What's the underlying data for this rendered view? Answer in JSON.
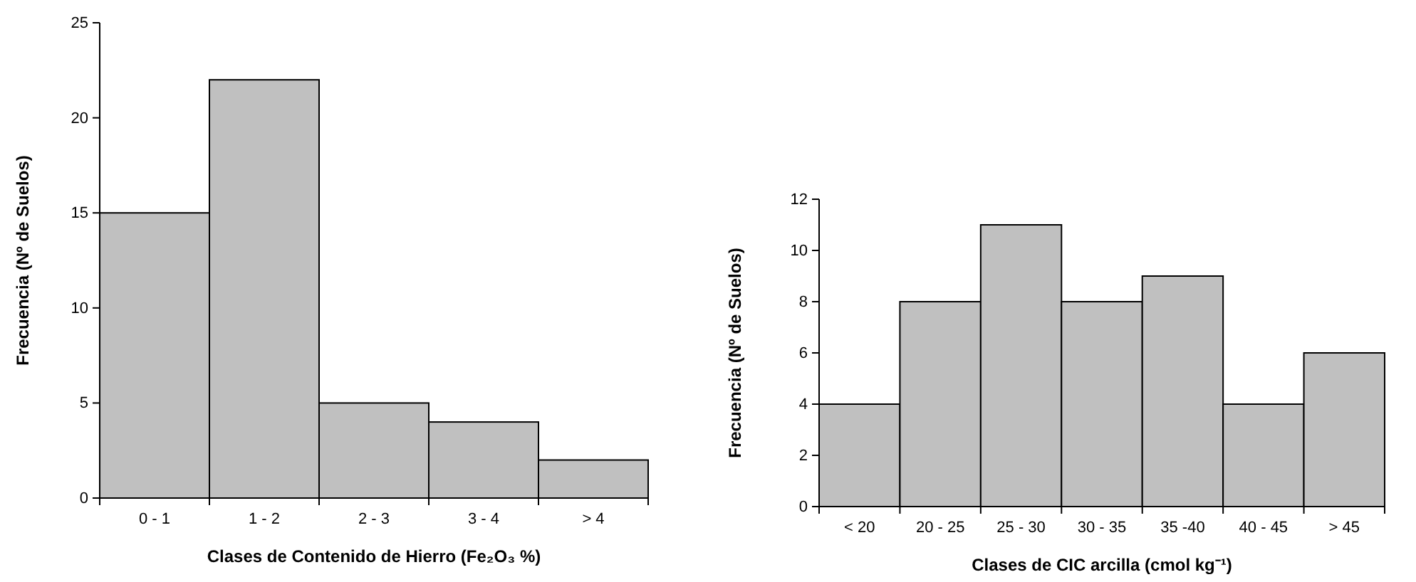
{
  "chart_data": [
    {
      "type": "bar",
      "xlabel": "Clases de Contenido de Hierro (Fe₂O₃ %)",
      "ylabel": "Frecuencia (Nº de Suelos)",
      "categories": [
        "0 - 1",
        "1 - 2",
        "2 - 3",
        "3 - 4",
        "> 4"
      ],
      "values": [
        15,
        22,
        5,
        4,
        2
      ],
      "color": "#c0c0c0",
      "ylim": [
        0,
        25
      ],
      "yticks": [
        0,
        5,
        10,
        15,
        20,
        25
      ],
      "grid": false
    },
    {
      "type": "bar",
      "xlabel": "Clases de CIC arcilla (cmol kg⁻¹)",
      "ylabel": "Frecuencia (Nº de Suelos)",
      "categories": [
        "< 20",
        "20 - 25",
        "25 - 30",
        "30 - 35",
        "35 -40",
        "40 - 45",
        "> 45"
      ],
      "values": [
        4,
        8,
        11,
        8,
        9,
        4,
        6
      ],
      "color": "#c0c0c0",
      "ylim": [
        0,
        12
      ],
      "yticks": [
        0,
        2,
        4,
        6,
        8,
        10,
        12
      ],
      "grid": false
    }
  ]
}
